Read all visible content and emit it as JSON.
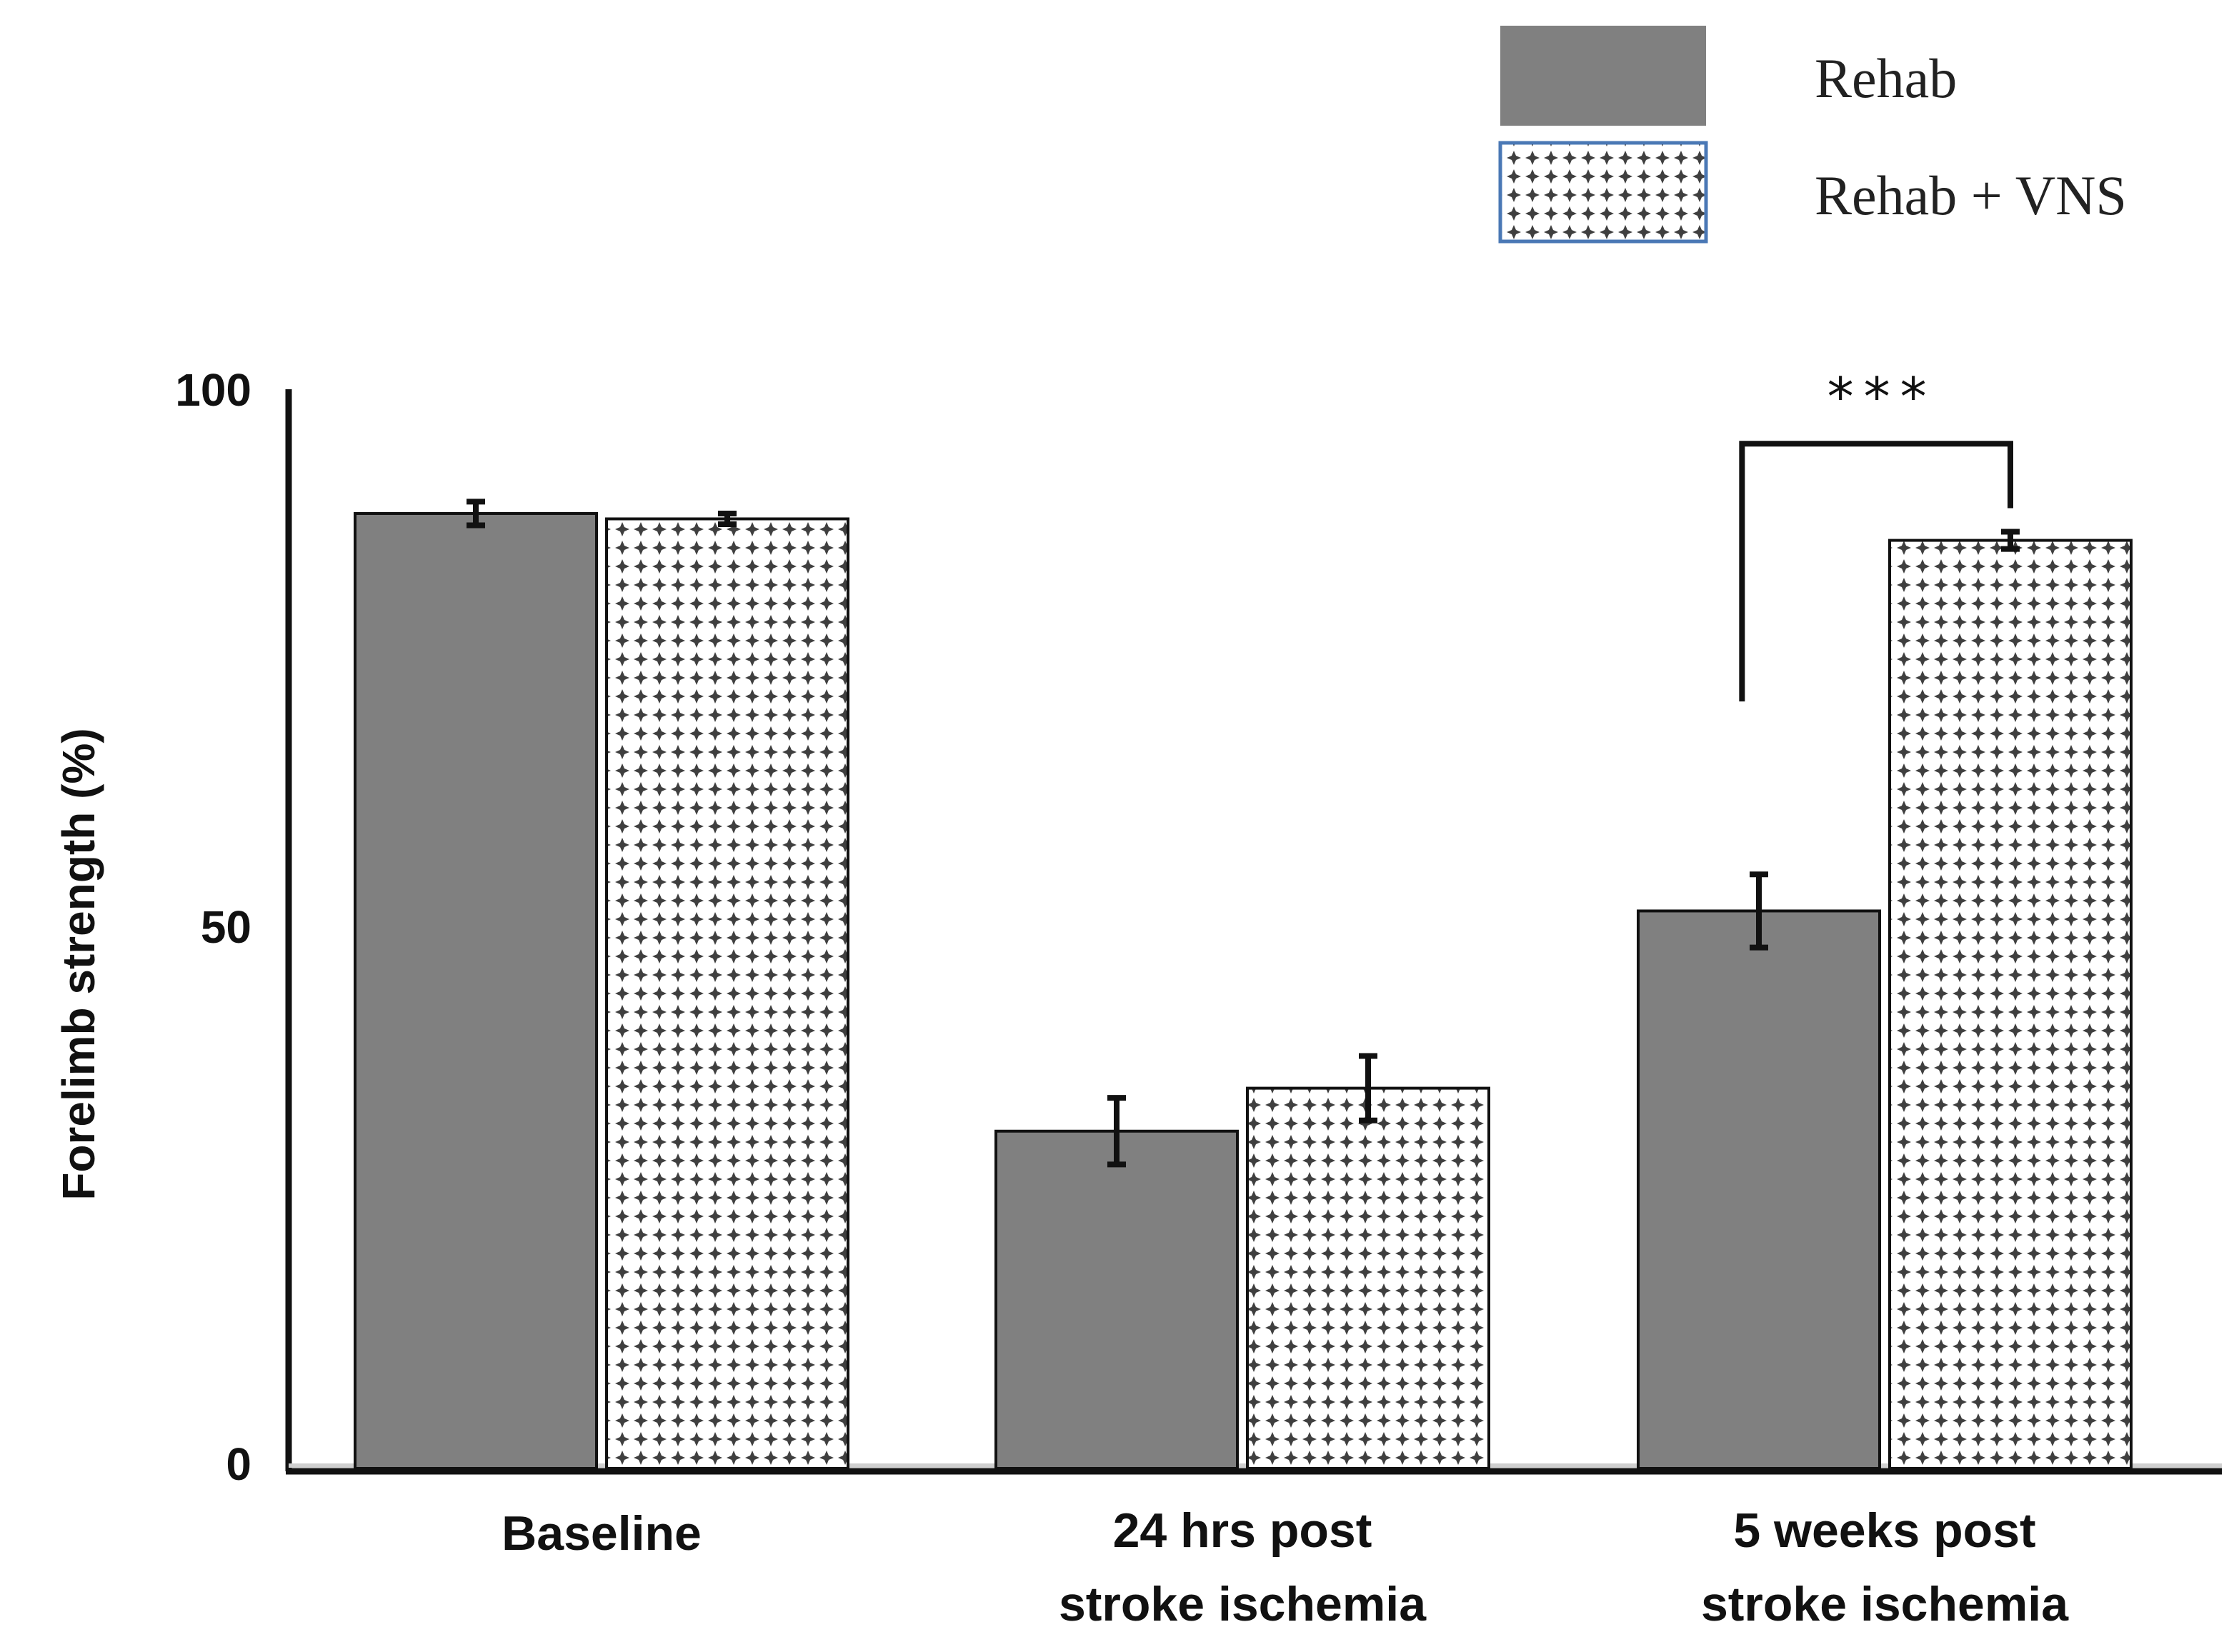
{
  "chart_data": {
    "type": "bar",
    "title": "",
    "xlabel": "",
    "ylabel": "Forelimb strength (%)",
    "ylim": [
      0,
      100
    ],
    "yticks": [
      "0",
      "50",
      "100"
    ],
    "categories": [
      [
        "Baseline"
      ],
      [
        "24 hrs post",
        "stroke ischemia"
      ],
      [
        "5 weeks post",
        "stroke ischemia"
      ]
    ],
    "series": [
      {
        "name": "Rehab",
        "color": "#808080",
        "pattern": "solid",
        "values": [
          88.5,
          31.0,
          51.5
        ],
        "errors": [
          1.1,
          3.1,
          3.4
        ]
      },
      {
        "name": "Rehab + VNS",
        "color": "#444444",
        "pattern": "dotted",
        "values": [
          88.0,
          35.0,
          86.0
        ],
        "errors": [
          0.5,
          3.0,
          0.8
        ]
      }
    ],
    "legend": {
      "position": "top-right",
      "entries": [
        "Rehab",
        "Rehab + VNS"
      ]
    },
    "annotations": [
      {
        "label": "***",
        "category_index": 2,
        "bracket_left_value": 71,
        "bracket_right_value": 89,
        "bracket_top_value": 95
      }
    ]
  }
}
